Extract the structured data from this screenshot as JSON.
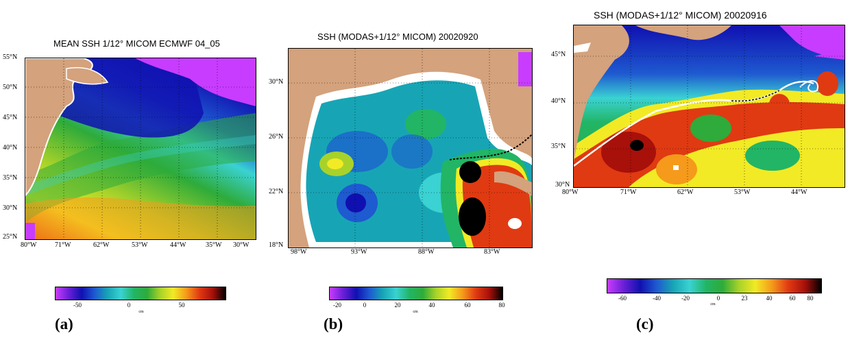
{
  "panels": [
    {
      "id": "a",
      "label": "(a)",
      "title": "MEAN SSH 1/12° MICOM ECMWF 04_05",
      "lat_ticks": [
        "55°N",
        "50°N",
        "45°N",
        "40°N",
        "35°N",
        "30°N",
        "25°N"
      ],
      "lon_ticks": [
        "80°W",
        "71°W",
        "62°W",
        "53°W",
        "44°W",
        "35°W",
        "30°W"
      ],
      "colorbar": {
        "labels": [
          "-50",
          "0",
          "50"
        ],
        "unit": "cm"
      }
    },
    {
      "id": "b",
      "label": "(b)",
      "title": "SSH (MODAS+1/12° MICOM) 20020920",
      "lat_ticks": [
        "30°N",
        "26°N",
        "22°N",
        "18°N"
      ],
      "lon_ticks": [
        "98°W",
        "93°W",
        "88°W",
        "83°W"
      ],
      "colorbar": {
        "labels": [
          "-20",
          "0",
          "20",
          "40",
          "60",
          "80"
        ],
        "unit": "cm"
      }
    },
    {
      "id": "c",
      "label": "(c)",
      "title": "SSH (MODAS+1/12° MICOM) 20020916",
      "lat_ticks": [
        "45°N",
        "40°N",
        "35°N",
        "30°N"
      ],
      "lon_ticks": [
        "80°W",
        "71°W",
        "62°W",
        "53°W",
        "44°W"
      ],
      "colorbar": {
        "labels": [
          "-60",
          "-40",
          "-20",
          "0",
          "23",
          "40",
          "60",
          "80"
        ],
        "unit": "cm"
      }
    }
  ],
  "colors": {
    "land": "#d4a27c",
    "coast_outline": "#ffffff",
    "colormap": [
      "#c83cff",
      "#6a1fd6",
      "#1010b0",
      "#1e5ad0",
      "#17a5b5",
      "#3ad2d2",
      "#22b566",
      "#2eab3a",
      "#a8d22a",
      "#f2ea25",
      "#f59a1b",
      "#e03a12",
      "#a8100a",
      "#000000"
    ]
  }
}
